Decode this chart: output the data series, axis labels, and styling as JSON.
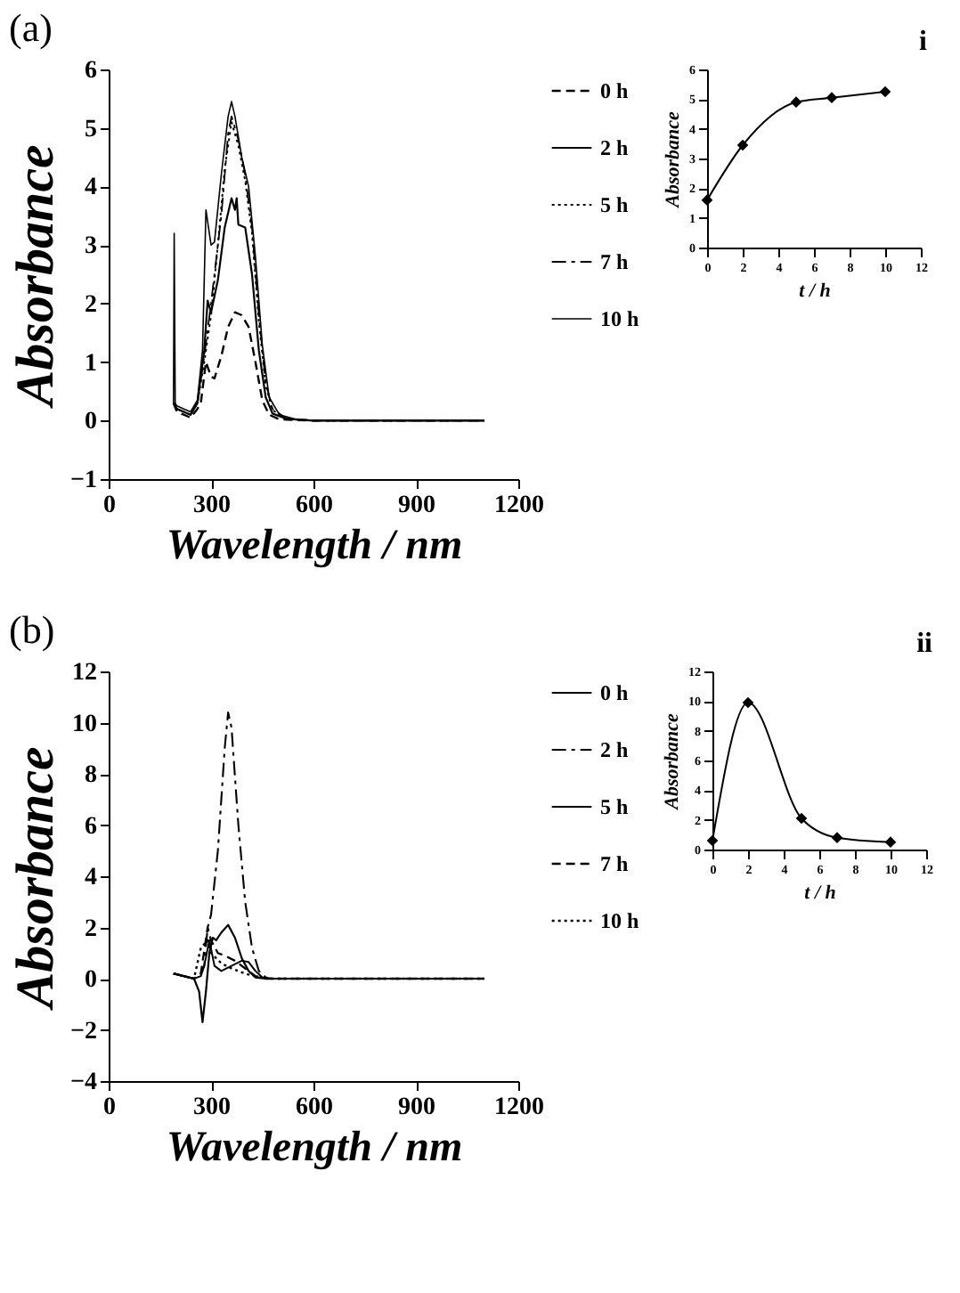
{
  "chart_data": [
    {
      "type": "line",
      "title": "(a)",
      "xlabel": "Wavelength / nm",
      "ylabel": "Absorbance",
      "xlim": [
        0,
        1200
      ],
      "xticks": [
        0,
        300,
        600,
        900,
        1200
      ],
      "ylim": [
        -1,
        6
      ],
      "yticks": [
        -1,
        0,
        1,
        2,
        3,
        4,
        5,
        6
      ],
      "legend": "right",
      "series": [
        {
          "name": "0 h",
          "color": "#000000",
          "line_style": "dashed",
          "x": [
            190,
            200,
            220,
            240,
            260,
            270,
            285,
            300,
            310,
            330,
            350,
            370,
            390,
            410,
            430,
            450,
            470,
            500,
            600,
            800,
            1100
          ],
          "values": [
            0.3,
            0.15,
            0.1,
            0.05,
            0.2,
            0.3,
            1.0,
            0.75,
            0.72,
            1.1,
            1.6,
            1.85,
            1.8,
            1.6,
            1.0,
            0.35,
            0.1,
            0.02,
            0,
            0,
            0
          ]
        },
        {
          "name": "2 h",
          "color": "#000000",
          "line_style": "solid",
          "x": [
            190,
            200,
            220,
            240,
            260,
            280,
            290,
            300,
            320,
            340,
            360,
            370,
            375,
            380,
            400,
            420,
            440,
            460,
            480,
            520,
            600,
            800,
            1100
          ],
          "values": [
            0.3,
            0.2,
            0.15,
            0.1,
            0.3,
            1.2,
            2.05,
            1.85,
            2.4,
            3.3,
            3.8,
            3.6,
            3.8,
            3.35,
            3.3,
            2.5,
            1.2,
            0.4,
            0.12,
            0.03,
            0,
            0,
            0
          ]
        },
        {
          "name": "5 h",
          "color": "#000000",
          "line_style": "dotted",
          "x": [
            190,
            200,
            220,
            240,
            260,
            280,
            300,
            320,
            340,
            360,
            380,
            400,
            420,
            440,
            460,
            480,
            520,
            600,
            800,
            1100
          ],
          "values": [
            0.3,
            0.2,
            0.15,
            0.1,
            0.3,
            1.0,
            1.8,
            3.0,
            4.3,
            5.1,
            4.7,
            4.1,
            3.2,
            1.7,
            0.6,
            0.18,
            0.03,
            0,
            0,
            0
          ]
        },
        {
          "name": "7 h",
          "color": "#000000",
          "line_style": "dashdot",
          "x": [
            190,
            200,
            220,
            240,
            260,
            280,
            300,
            330,
            350,
            360,
            380,
            400,
            420,
            440,
            460,
            480,
            520,
            600,
            800,
            1100
          ],
          "values": [
            0.3,
            0.2,
            0.15,
            0.1,
            0.3,
            1.1,
            2.0,
            3.5,
            4.9,
            5.2,
            4.8,
            4.2,
            3.3,
            1.8,
            0.65,
            0.2,
            0.04,
            0,
            0,
            0
          ]
        },
        {
          "name": "10 h",
          "color": "#000000",
          "line_style": "solid",
          "x": [
            190,
            192,
            195,
            200,
            220,
            240,
            260,
            275,
            285,
            300,
            310,
            330,
            350,
            360,
            370,
            390,
            410,
            430,
            450,
            470,
            500,
            550,
            600,
            800,
            1100
          ],
          "values": [
            0.3,
            3.2,
            0.3,
            0.25,
            0.2,
            0.15,
            0.35,
            1.2,
            3.6,
            3.0,
            3.05,
            4.2,
            5.2,
            5.45,
            5.2,
            4.5,
            4.0,
            2.8,
            1.3,
            0.4,
            0.1,
            0.02,
            0,
            0,
            0
          ]
        }
      ]
    },
    {
      "type": "line",
      "title": "i",
      "xlabel": "t / h",
      "ylabel": "Absorbance",
      "xlim": [
        0,
        12
      ],
      "xticks": [
        0,
        2,
        4,
        6,
        8,
        10,
        12
      ],
      "ylim": [
        0,
        6
      ],
      "yticks": [
        0,
        1,
        2,
        3,
        4,
        5,
        6
      ],
      "marker": "diamond",
      "series": [
        {
          "color": "#000000",
          "line_style": "solid",
          "x": [
            0,
            2,
            5,
            7,
            10
          ],
          "values": [
            1.6,
            3.45,
            4.9,
            5.05,
            5.25
          ]
        }
      ]
    },
    {
      "type": "line",
      "title": "(b)",
      "xlabel": "Wavelength / nm",
      "ylabel": "Absorbance",
      "xlim": [
        0,
        1200
      ],
      "xticks": [
        0,
        300,
        600,
        900,
        1200
      ],
      "ylim": [
        -4,
        12
      ],
      "yticks": [
        -4,
        -2,
        0,
        2,
        4,
        6,
        8,
        10,
        12
      ],
      "legend": "right",
      "series": [
        {
          "name": "0 h",
          "color": "#000000",
          "line_style": "solid",
          "x": [
            190,
            220,
            250,
            270,
            280,
            295,
            310,
            330,
            360,
            390,
            410,
            430,
            450,
            480,
            600,
            1100
          ],
          "values": [
            0.2,
            0.1,
            0,
            0.1,
            0.5,
            1.5,
            0.5,
            0.3,
            0.5,
            0.7,
            0.65,
            0.3,
            0.05,
            0,
            0,
            0
          ]
        },
        {
          "name": "2 h",
          "color": "#000000",
          "line_style": "dashdot",
          "x": [
            190,
            220,
            250,
            270,
            280,
            290,
            300,
            320,
            340,
            350,
            360,
            380,
            400,
            420,
            440,
            460,
            480,
            600,
            1100
          ],
          "values": [
            0.2,
            0.1,
            0,
            0.2,
            0.5,
            2.0,
            2.5,
            5.0,
            9.0,
            10.4,
            9.8,
            6.0,
            3.0,
            1.2,
            0.3,
            0.05,
            0,
            0,
            0
          ]
        },
        {
          "name": "5 h",
          "color": "#000000",
          "line_style": "solid",
          "x": [
            190,
            220,
            250,
            265,
            275,
            285,
            295,
            305,
            315,
            330,
            350,
            370,
            390,
            410,
            430,
            460,
            600,
            1100
          ],
          "values": [
            0.2,
            0.1,
            0,
            -0.5,
            -1.7,
            -0.5,
            1.0,
            1.6,
            1.5,
            1.8,
            2.1,
            1.6,
            0.8,
            0.3,
            0.05,
            0,
            0,
            0
          ]
        },
        {
          "name": "7 h",
          "color": "#000000",
          "line_style": "dashed",
          "x": [
            190,
            220,
            250,
            270,
            290,
            300,
            320,
            340,
            370,
            400,
            430,
            460,
            600,
            1100
          ],
          "values": [
            0.2,
            0.1,
            0,
            0.2,
            2.0,
            1.5,
            1.0,
            0.9,
            0.7,
            0.4,
            0.1,
            0,
            0,
            0
          ]
        },
        {
          "name": "10 h",
          "color": "#000000",
          "line_style": "dotted",
          "x": [
            190,
            220,
            250,
            270,
            290,
            300,
            330,
            360,
            400,
            440,
            470,
            600,
            1100
          ],
          "values": [
            0.2,
            0.1,
            0,
            1.2,
            1.5,
            1.0,
            0.6,
            0.4,
            0.2,
            0.05,
            0,
            0,
            0
          ]
        }
      ]
    },
    {
      "type": "line",
      "title": "ii",
      "xlabel": "t / h",
      "ylabel": "Absorbance",
      "xlim": [
        0,
        12
      ],
      "xticks": [
        0,
        2,
        4,
        6,
        8,
        10,
        12
      ],
      "ylim": [
        0,
        12
      ],
      "yticks": [
        0,
        2,
        4,
        6,
        8,
        10,
        12
      ],
      "marker": "diamond",
      "series": [
        {
          "color": "#000000",
          "line_style": "solid",
          "x": [
            0,
            2,
            5,
            7,
            10
          ],
          "values": [
            0.6,
            9.9,
            2.1,
            0.8,
            0.5
          ]
        }
      ]
    }
  ]
}
